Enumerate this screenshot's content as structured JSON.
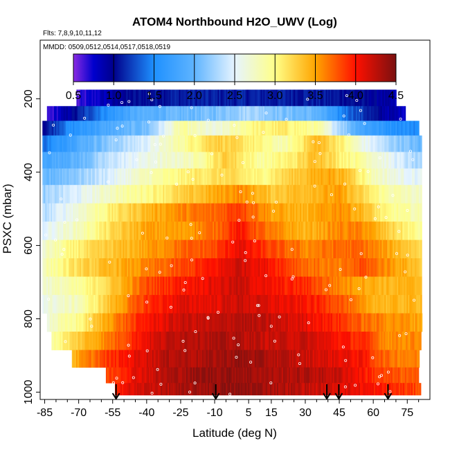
{
  "chart_data": {
    "type": "heatmap",
    "title": "ATOM4 Northbound H2O_UWV (Log)",
    "flights_label": "Flts: 7,8,9,10,11,12",
    "dates_label": "MMDD: 0509,0512,0514,0517,0518,0519",
    "xlabel": "Latitude (deg N)",
    "ylabel": "PSXC (mbar)",
    "xlim": [
      -87,
      85
    ],
    "ylim": [
      1020,
      40
    ],
    "x_ticks": [
      -85,
      -70,
      -55,
      -40,
      -25,
      -10,
      5,
      15,
      30,
      45,
      60,
      75
    ],
    "x_tick_labels": [
      "-85",
      "-70",
      "-55",
      "-40",
      "-25",
      "-10",
      "5",
      "15",
      "30",
      "45",
      "60",
      "75"
    ],
    "y_ticks": [
      200,
      400,
      600,
      800,
      1000
    ],
    "y_tick_labels": [
      "200",
      "400",
      "600",
      "800",
      "1000"
    ],
    "colorbar": {
      "range": [
        0.5,
        4.5
      ],
      "ticks": [
        0.5,
        1.0,
        1.5,
        2.0,
        2.5,
        3.0,
        3.5,
        4.0,
        4.5
      ],
      "tick_labels": [
        "0.5",
        "1.0",
        "1.5",
        "2.0",
        "2.5",
        "3.0",
        "3.5",
        "4.0",
        "4.5"
      ],
      "stops": [
        {
          "v": 0.5,
          "color": "#8a2be2"
        },
        {
          "v": 0.75,
          "color": "#0000cd"
        },
        {
          "v": 1.0,
          "color": "#00008b"
        },
        {
          "v": 1.5,
          "color": "#1e90ff"
        },
        {
          "v": 2.0,
          "color": "#5fb4ff"
        },
        {
          "v": 2.5,
          "color": "#e6f4ff"
        },
        {
          "v": 3.0,
          "color": "#ffff88"
        },
        {
          "v": 3.5,
          "color": "#ffa500"
        },
        {
          "v": 4.0,
          "color": "#ff1000"
        },
        {
          "v": 4.5,
          "color": "#7a1010"
        }
      ]
    },
    "layers": [
      {
        "p": 200,
        "xmin": -71,
        "xmax": 70,
        "knots": [
          [
            -71,
            0.6
          ],
          [
            -60,
            0.8
          ],
          [
            -50,
            1.0
          ],
          [
            -30,
            1.1
          ],
          [
            0,
            1.1
          ],
          [
            30,
            1.1
          ],
          [
            50,
            1.05
          ],
          [
            62,
            0.95
          ],
          [
            70,
            0.8
          ]
        ]
      },
      {
        "p": 240,
        "xmin": -84,
        "xmax": 74,
        "knots": [
          [
            -84,
            0.6
          ],
          [
            -75,
            0.9
          ],
          [
            -60,
            1.5
          ],
          [
            -45,
            1.9
          ],
          [
            -30,
            2.0
          ],
          [
            -10,
            2.1
          ],
          [
            5,
            2.3
          ],
          [
            20,
            2.1
          ],
          [
            35,
            2.0
          ],
          [
            45,
            1.5
          ],
          [
            55,
            1.2
          ],
          [
            65,
            0.9
          ],
          [
            74,
            0.8
          ]
        ]
      },
      {
        "p": 280,
        "xmin": -86,
        "xmax": 80,
        "knots": [
          [
            -86,
            1.0
          ],
          [
            -75,
            1.5
          ],
          [
            -55,
            1.9
          ],
          [
            -40,
            2.1
          ],
          [
            -25,
            2.9
          ],
          [
            -10,
            2.6
          ],
          [
            5,
            3.0
          ],
          [
            20,
            3.1
          ],
          [
            35,
            2.9
          ],
          [
            45,
            2.3
          ],
          [
            55,
            1.8
          ],
          [
            65,
            1.6
          ],
          [
            80,
            1.5
          ]
        ]
      },
      {
        "p": 320,
        "xmin": -86,
        "xmax": 81,
        "knots": [
          [
            -86,
            1.4
          ],
          [
            -70,
            1.9
          ],
          [
            -55,
            2.2
          ],
          [
            -40,
            2.5
          ],
          [
            -25,
            2.9
          ],
          [
            -10,
            3.3
          ],
          [
            5,
            3.1
          ],
          [
            20,
            2.8
          ],
          [
            35,
            3.4
          ],
          [
            45,
            3.1
          ],
          [
            55,
            2.6
          ],
          [
            65,
            2.3
          ],
          [
            81,
            2.0
          ]
        ]
      },
      {
        "p": 370,
        "xmin": -86,
        "xmax": 81,
        "knots": [
          [
            -86,
            1.8
          ],
          [
            -70,
            2.0
          ],
          [
            -55,
            2.4
          ],
          [
            -40,
            2.6
          ],
          [
            -20,
            2.8
          ],
          [
            -5,
            3.3
          ],
          [
            10,
            2.9
          ],
          [
            25,
            3.1
          ],
          [
            35,
            3.4
          ],
          [
            45,
            3.1
          ],
          [
            55,
            2.9
          ],
          [
            65,
            2.6
          ],
          [
            81,
            2.2
          ]
        ]
      },
      {
        "p": 410,
        "xmin": -86,
        "xmax": 81,
        "knots": [
          [
            -86,
            2.0
          ],
          [
            -70,
            2.2
          ],
          [
            -55,
            2.5
          ],
          [
            -40,
            2.8
          ],
          [
            -20,
            3.1
          ],
          [
            -5,
            3.2
          ],
          [
            10,
            3.0
          ],
          [
            25,
            3.3
          ],
          [
            40,
            3.5
          ],
          [
            50,
            3.3
          ],
          [
            60,
            2.8
          ],
          [
            70,
            2.6
          ],
          [
            81,
            2.5
          ]
        ]
      },
      {
        "p": 460,
        "xmin": -86,
        "xmax": 81,
        "knots": [
          [
            -86,
            2.2
          ],
          [
            -70,
            2.5
          ],
          [
            -55,
            2.8
          ],
          [
            -40,
            3.0
          ],
          [
            -20,
            3.3
          ],
          [
            0,
            3.6
          ],
          [
            15,
            3.3
          ],
          [
            30,
            3.4
          ],
          [
            45,
            3.5
          ],
          [
            55,
            3.2
          ],
          [
            65,
            2.9
          ],
          [
            81,
            2.7
          ]
        ]
      },
      {
        "p": 510,
        "xmin": -86,
        "xmax": 81,
        "knots": [
          [
            -86,
            2.3
          ],
          [
            -70,
            2.7
          ],
          [
            -55,
            3.1
          ],
          [
            -40,
            3.4
          ],
          [
            -25,
            3.6
          ],
          [
            -10,
            3.7
          ],
          [
            0,
            3.9
          ],
          [
            15,
            3.5
          ],
          [
            30,
            3.4
          ],
          [
            45,
            3.6
          ],
          [
            55,
            3.4
          ],
          [
            65,
            3.0
          ],
          [
            81,
            2.8
          ]
        ]
      },
      {
        "p": 560,
        "xmin": -86,
        "xmax": 81,
        "knots": [
          [
            -86,
            2.5
          ],
          [
            -70,
            2.8
          ],
          [
            -55,
            3.2
          ],
          [
            -40,
            3.5
          ],
          [
            -25,
            3.5
          ],
          [
            -10,
            3.7
          ],
          [
            0,
            4.0
          ],
          [
            15,
            3.6
          ],
          [
            30,
            3.4
          ],
          [
            45,
            3.6
          ],
          [
            55,
            3.6
          ],
          [
            65,
            3.3
          ],
          [
            81,
            2.9
          ]
        ]
      },
      {
        "p": 610,
        "xmin": -86,
        "xmax": 81,
        "knots": [
          [
            -86,
            2.7
          ],
          [
            -70,
            3.1
          ],
          [
            -55,
            3.3
          ],
          [
            -40,
            3.5
          ],
          [
            -25,
            3.7
          ],
          [
            -10,
            3.8
          ],
          [
            0,
            4.1
          ],
          [
            15,
            3.8
          ],
          [
            30,
            3.6
          ],
          [
            45,
            3.7
          ],
          [
            55,
            3.7
          ],
          [
            65,
            3.5
          ],
          [
            81,
            3.2
          ]
        ]
      },
      {
        "p": 660,
        "xmin": -86,
        "xmax": 81,
        "knots": [
          [
            -86,
            2.8
          ],
          [
            -70,
            3.2
          ],
          [
            -55,
            3.4
          ],
          [
            -40,
            3.6
          ],
          [
            -25,
            3.8
          ],
          [
            -10,
            4.0
          ],
          [
            0,
            4.2
          ],
          [
            15,
            4.0
          ],
          [
            30,
            3.7
          ],
          [
            45,
            3.6
          ],
          [
            55,
            3.8
          ],
          [
            65,
            3.6
          ],
          [
            81,
            3.3
          ]
        ]
      },
      {
        "p": 710,
        "xmin": -86,
        "xmax": 81,
        "knots": [
          [
            -86,
            2.7
          ],
          [
            -70,
            2.9
          ],
          [
            -55,
            3.3
          ],
          [
            -40,
            3.8
          ],
          [
            -25,
            4.0
          ],
          [
            -10,
            4.1
          ],
          [
            0,
            4.2
          ],
          [
            15,
            4.0
          ],
          [
            30,
            3.9
          ],
          [
            45,
            3.6
          ],
          [
            55,
            3.5
          ],
          [
            65,
            3.4
          ],
          [
            81,
            3.4
          ]
        ]
      },
      {
        "p": 760,
        "xmin": -86,
        "xmax": 81,
        "knots": [
          [
            -86,
            2.6
          ],
          [
            -70,
            2.8
          ],
          [
            -55,
            3.4
          ],
          [
            -40,
            3.9
          ],
          [
            -25,
            4.1
          ],
          [
            -10,
            4.1
          ],
          [
            0,
            4.2
          ],
          [
            15,
            4.1
          ],
          [
            30,
            4.0
          ],
          [
            45,
            3.8
          ],
          [
            55,
            3.5
          ],
          [
            65,
            3.4
          ],
          [
            81,
            3.4
          ]
        ]
      },
      {
        "p": 810,
        "xmin": -84,
        "xmax": 81,
        "knots": [
          [
            -84,
            2.7
          ],
          [
            -70,
            3.0
          ],
          [
            -55,
            3.6
          ],
          [
            -40,
            4.0
          ],
          [
            -25,
            4.2
          ],
          [
            -10,
            4.2
          ],
          [
            0,
            4.3
          ],
          [
            15,
            4.2
          ],
          [
            30,
            4.1
          ],
          [
            45,
            3.9
          ],
          [
            55,
            3.7
          ],
          [
            65,
            3.6
          ],
          [
            81,
            3.5
          ]
        ]
      },
      {
        "p": 860,
        "xmin": -82,
        "xmax": 81,
        "knots": [
          [
            -82,
            2.9
          ],
          [
            -70,
            3.3
          ],
          [
            -55,
            3.7
          ],
          [
            -40,
            4.1
          ],
          [
            -25,
            4.3
          ],
          [
            -10,
            4.3
          ],
          [
            0,
            4.3
          ],
          [
            15,
            4.2
          ],
          [
            30,
            4.2
          ],
          [
            45,
            4.0
          ],
          [
            55,
            3.9
          ],
          [
            65,
            3.6
          ],
          [
            81,
            3.6
          ]
        ]
      },
      {
        "p": 910,
        "xmin": -73,
        "xmax": 80,
        "knots": [
          [
            -73,
            3.4
          ],
          [
            -60,
            3.8
          ],
          [
            -45,
            4.1
          ],
          [
            -30,
            4.3
          ],
          [
            -15,
            4.3
          ],
          [
            0,
            4.4
          ],
          [
            15,
            4.3
          ],
          [
            30,
            4.2
          ],
          [
            45,
            4.1
          ],
          [
            55,
            4.0
          ],
          [
            65,
            3.7
          ],
          [
            80,
            3.6
          ]
        ]
      },
      {
        "p": 955,
        "xmin": -58,
        "xmax": 80,
        "knots": [
          [
            -58,
            3.8
          ],
          [
            -45,
            4.1
          ],
          [
            -30,
            4.3
          ],
          [
            -15,
            4.4
          ],
          [
            0,
            4.4
          ],
          [
            15,
            4.3
          ],
          [
            30,
            4.3
          ],
          [
            45,
            4.2
          ],
          [
            55,
            4.0
          ],
          [
            65,
            3.8
          ],
          [
            80,
            3.7
          ]
        ]
      },
      {
        "p": 995,
        "xmin": -54,
        "xmax": 81,
        "knots": [
          [
            -54,
            4.0
          ],
          [
            -40,
            4.2
          ],
          [
            -25,
            4.3
          ],
          [
            -10,
            4.4
          ],
          [
            5,
            4.4
          ],
          [
            20,
            4.3
          ],
          [
            35,
            4.2
          ],
          [
            50,
            4.1
          ],
          [
            60,
            4.0
          ],
          [
            70,
            3.9
          ],
          [
            81,
            3.8
          ]
        ]
      }
    ],
    "flight_marker_latitudes": [
      -53.5,
      -9.5,
      39.5,
      44.8,
      66.5
    ]
  }
}
